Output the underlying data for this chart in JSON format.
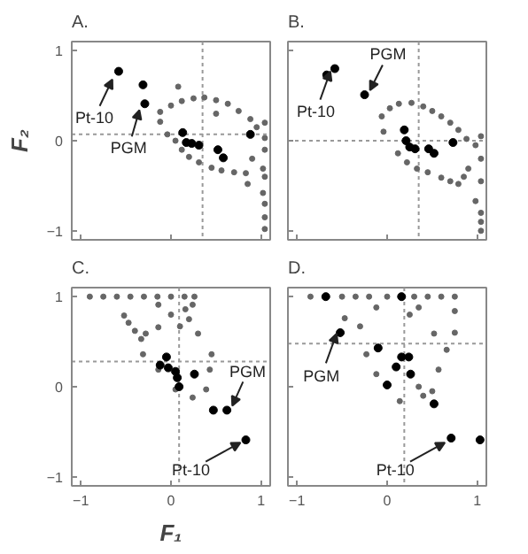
{
  "chart_data": [
    {
      "type": "scatter",
      "title": "A.",
      "ylabel": "F₂",
      "xlim": [
        -1.1,
        1.1
      ],
      "ylim": [
        -1.1,
        1.1
      ],
      "xticks": [
        -1,
        0,
        1
      ],
      "yticks": [
        -1,
        0,
        1
      ],
      "tick_labels": "y",
      "grid": false,
      "marker": "circle",
      "ref_lines": [
        {
          "axis": "x",
          "value": 0.35,
          "color": "#999999",
          "line_style": "dotted"
        },
        {
          "axis": "y",
          "value": 0.07,
          "color": "#999999",
          "line_style": "dotted"
        }
      ],
      "annotations": [
        {
          "text": "Pt-10",
          "x": -0.65,
          "y": 0.68
        },
        {
          "text": "PGM",
          "x": -0.35,
          "y": 0.34
        }
      ],
      "series": [
        {
          "color": "#666666",
          "x": [
            -0.12,
            0.12,
            0.37,
            0.63,
            0.88,
            1.04,
            1.02,
            0.83,
            0.56,
            0.31,
            0.12,
            -0.04,
            -0.12,
            0.0,
            0.25,
            0.5,
            0.75,
            0.95,
            0.9,
            0.7,
            0.45,
            0.2,
            0.05,
            0.08,
            0.5,
            0.85,
            1.02,
            1.04,
            1.04,
            1.04,
            1.04,
            1.04,
            1.04
          ],
          "values": [
            0.32,
            0.44,
            0.48,
            0.41,
            0.24,
            0.03,
            -0.31,
            -0.36,
            -0.33,
            -0.24,
            -0.1,
            0.07,
            0.21,
            0.39,
            0.47,
            0.45,
            0.33,
            0.15,
            -0.2,
            -0.35,
            -0.3,
            -0.18,
            0.0,
            0.6,
            0.3,
            -0.48,
            -0.58,
            0.2,
            -0.1,
            -0.4,
            -0.7,
            -0.85,
            -0.98
          ]
        },
        {
          "color": "#000000",
          "x": [
            -0.58,
            -0.31,
            -0.29,
            0.13,
            0.17,
            0.23,
            0.31,
            0.52,
            0.58,
            0.88
          ],
          "values": [
            0.77,
            0.62,
            0.41,
            0.09,
            -0.02,
            -0.03,
            -0.05,
            -0.1,
            -0.19,
            0.07
          ]
        }
      ]
    },
    {
      "type": "scatter",
      "title": "B.",
      "xlim": [
        -1.1,
        1.1
      ],
      "ylim": [
        -1.1,
        1.1
      ],
      "xticks": [
        -1,
        0,
        1
      ],
      "yticks": [
        -1,
        0,
        1
      ],
      "tick_labels": false,
      "grid": false,
      "marker": "circle",
      "ref_lines": [
        {
          "axis": "x",
          "value": 0.35,
          "color": "#999999",
          "line_style": "dotted"
        },
        {
          "axis": "y",
          "value": 0.0,
          "color": "#999999",
          "line_style": "dotted"
        }
      ],
      "annotations": [
        {
          "text": "Pt-10",
          "x": -0.63,
          "y": 0.77
        },
        {
          "text": "PGM",
          "x": -0.19,
          "y": 0.56
        }
      ],
      "series": [
        {
          "color": "#666666",
          "x": [
            -0.06,
            0.13,
            0.4,
            0.6,
            0.79,
            0.98,
            0.9,
            0.79,
            0.6,
            0.33,
            0.12,
            -0.04,
            0.03,
            0.27,
            0.5,
            0.7,
            0.88,
            0.85,
            0.7,
            0.45,
            0.22,
            0.98,
            1.04,
            1.04,
            1.04,
            1.04,
            1.04,
            1.04
          ],
          "values": [
            0.27,
            0.41,
            0.38,
            0.27,
            0.12,
            -0.05,
            -0.31,
            -0.48,
            -0.41,
            -0.31,
            -0.14,
            0.1,
            0.36,
            0.42,
            0.33,
            0.2,
            0.02,
            -0.4,
            -0.45,
            -0.35,
            -0.24,
            -0.67,
            0.05,
            -0.2,
            -0.45,
            -0.8,
            -0.9,
            -1.0
          ]
        },
        {
          "color": "#000000",
          "x": [
            -0.58,
            -0.67,
            -0.25,
            0.19,
            0.21,
            0.25,
            0.31,
            0.46,
            0.52,
            0.73
          ],
          "values": [
            0.8,
            0.73,
            0.51,
            0.12,
            0.0,
            -0.07,
            -0.09,
            -0.09,
            -0.14,
            -0.02
          ]
        }
      ]
    },
    {
      "type": "scatter",
      "title": "C.",
      "xlabel": "F₁",
      "xlim": [
        -1.1,
        1.1
      ],
      "ylim": [
        -1.1,
        1.1
      ],
      "xticks": [
        -1,
        0,
        1
      ],
      "yticks": [
        -1,
        0,
        1
      ],
      "grid": false,
      "marker": "circle",
      "ref_lines": [
        {
          "axis": "x",
          "value": 0.09,
          "color": "#999999",
          "line_style": "dotted"
        },
        {
          "axis": "y",
          "value": 0.28,
          "color": "#999999",
          "line_style": "dotted"
        }
      ],
      "annotations": [
        {
          "text": "PGM",
          "x": 0.68,
          "y": -0.21
        },
        {
          "text": "Pt-10",
          "x": 0.77,
          "y": -0.62
        }
      ],
      "series": [
        {
          "color": "#666666",
          "x": [
            -0.9,
            -0.75,
            -0.6,
            -0.45,
            -0.3,
            -0.15,
            0.0,
            0.15,
            0.26,
            -0.52,
            -0.14,
            0.24,
            -0.47,
            0.16,
            -0.33,
            -0.31,
            -0.14,
            0.05,
            0.24,
            0.39,
            0.43,
            0.45,
            0.3,
            0.1,
            -0.14,
            -0.28,
            -0.4,
            0.0,
            0.2
          ],
          "values": [
            1.0,
            1.0,
            1.0,
            1.0,
            1.0,
            1.0,
            1.0,
            1.0,
            1.0,
            0.79,
            0.91,
            0.91,
            0.71,
            0.86,
            0.53,
            0.36,
            0.19,
            -0.03,
            -0.12,
            -0.03,
            0.19,
            0.36,
            0.59,
            0.67,
            0.66,
            0.59,
            0.62,
            0.8,
            0.75
          ]
        },
        {
          "color": "#000000",
          "x": [
            -0.05,
            -0.12,
            -0.03,
            0.05,
            0.07,
            0.09,
            0.26,
            0.47,
            0.62,
            0.83
          ],
          "values": [
            0.33,
            0.24,
            0.21,
            0.17,
            0.1,
            0.0,
            0.14,
            -0.26,
            -0.26,
            -0.59
          ]
        }
      ]
    },
    {
      "type": "scatter",
      "title": "D.",
      "xlim": [
        -1.1,
        1.1
      ],
      "ylim": [
        -1.1,
        1.1
      ],
      "xticks": [
        -1,
        0,
        1
      ],
      "yticks": [
        -1,
        0,
        1
      ],
      "tick_labels": "x",
      "grid": false,
      "marker": "circle",
      "ref_lines": [
        {
          "axis": "x",
          "value": 0.19,
          "color": "#999999",
          "line_style": "dotted"
        },
        {
          "axis": "y",
          "value": 0.48,
          "color": "#999999",
          "line_style": "dotted"
        }
      ],
      "annotations": [
        {
          "text": "PGM",
          "x": -0.56,
          "y": 0.59
        },
        {
          "text": "Pt-10",
          "x": 0.64,
          "y": -0.62
        }
      ],
      "series": [
        {
          "color": "#666666",
          "x": [
            -0.85,
            -0.5,
            -0.35,
            -0.2,
            0.0,
            0.3,
            0.45,
            0.6,
            0.75,
            -0.47,
            -0.12,
            0.35,
            0.75,
            -0.3,
            0.25,
            0.75,
            -0.23,
            -0.12,
            0.14,
            0.4,
            0.57,
            0.66,
            0.52,
            0.5,
            0.35
          ],
          "values": [
            1.0,
            1.0,
            1.0,
            1.0,
            1.0,
            1.0,
            1.0,
            1.0,
            1.0,
            0.76,
            0.88,
            0.88,
            0.84,
            0.67,
            0.8,
            0.6,
            0.36,
            0.14,
            -0.16,
            -0.1,
            0.19,
            0.41,
            0.59,
            -0.05,
            0.0
          ]
        },
        {
          "color": "#000000",
          "x": [
            -0.68,
            0.16,
            -0.52,
            -0.1,
            0.1,
            0.24,
            0.16,
            0.26,
            0.0,
            0.52,
            0.71,
            1.03
          ],
          "values": [
            1.0,
            1.0,
            0.6,
            0.43,
            0.22,
            0.33,
            0.33,
            0.14,
            0.02,
            -0.19,
            -0.57,
            -0.59
          ]
        }
      ]
    }
  ]
}
